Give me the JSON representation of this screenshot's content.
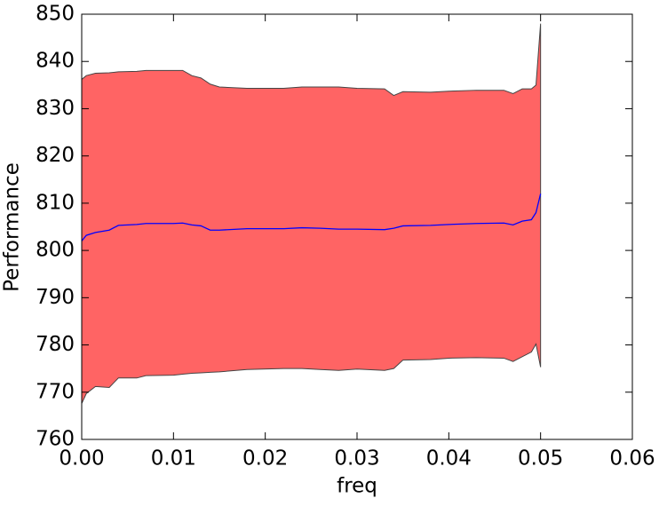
{
  "chart_data": {
    "type": "line",
    "x_label": "freq",
    "y_label": "Performance",
    "x": [
      0,
      0.0005,
      0.0015,
      0.003,
      0.004,
      0.006,
      0.007,
      0.01,
      0.011,
      0.012,
      0.013,
      0.014,
      0.015,
      0.018,
      0.022,
      0.024,
      0.026,
      0.028,
      0.03,
      0.033,
      0.034,
      0.035,
      0.038,
      0.04,
      0.043,
      0.046,
      0.047,
      0.048,
      0.049,
      0.0495,
      0.05
    ],
    "values": [
      802,
      803.2,
      803.8,
      804.3,
      805.3,
      805.5,
      805.7,
      805.7,
      805.8,
      805.4,
      805.2,
      804.3,
      804.3,
      804.6,
      804.6,
      804.8,
      804.7,
      804.5,
      804.5,
      804.4,
      804.7,
      805.2,
      805.3,
      805.5,
      805.7,
      805.8,
      805.4,
      806.2,
      806.5,
      808,
      812
    ],
    "upper": [
      836.2,
      837,
      837.5,
      837.6,
      837.8,
      837.9,
      838.1,
      838.1,
      838.1,
      837,
      836.5,
      835.2,
      834.6,
      834.3,
      834.3,
      834.6,
      834.6,
      834.6,
      834.3,
      834.2,
      832.8,
      833.6,
      833.5,
      833.7,
      833.9,
      833.9,
      833.2,
      834.2,
      834.2,
      835,
      848
    ],
    "lower": [
      767.6,
      769.7,
      771.2,
      771,
      773,
      773,
      773.5,
      773.6,
      773.8,
      774,
      774.1,
      774.2,
      774.3,
      774.8,
      775,
      775,
      774.8,
      774.6,
      774.9,
      774.6,
      775,
      776.8,
      776.9,
      777.2,
      777.3,
      777.2,
      776.5,
      777.5,
      778.5,
      780.2,
      775.3
    ],
    "color": "#0000ff",
    "band_color": "#ff6464",
    "band_edge_color": "#444444",
    "xlim": [
      0,
      0.06
    ],
    "xticks": [
      {
        "value": 0,
        "label": "0.00"
      },
      0.01,
      0.02,
      0.03,
      0.04,
      0.05,
      0.06
    ],
    "ylim": [
      760,
      850
    ],
    "yticks": [
      760,
      770,
      780,
      790,
      800,
      810,
      820,
      830,
      840,
      850
    ],
    "grid": false
  }
}
